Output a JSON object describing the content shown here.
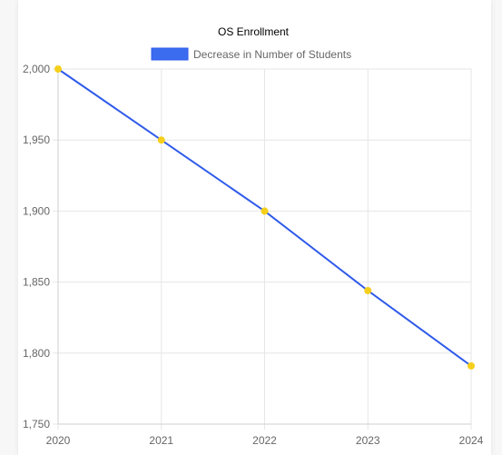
{
  "chart_data": {
    "type": "line",
    "title": "OS Enrollment",
    "categories": [
      "2020",
      "2021",
      "2022",
      "2023",
      "2024"
    ],
    "series": [
      {
        "name": "Decrease in Number of Students",
        "values": [
          2000,
          1950,
          1900,
          1844,
          1791
        ],
        "line_color": "#2f5bea",
        "point_color": "#f5cf1b",
        "legend_fill": "#3b6cf0"
      }
    ],
    "ylim": [
      1750,
      2000
    ],
    "y_ticks": [
      2000,
      1950,
      1900,
      1850,
      1800,
      1750
    ],
    "y_tick_labels": [
      "2,000",
      "1,950",
      "1,900",
      "1,850",
      "1,800",
      "1,750"
    ],
    "grid": true,
    "legend_position": "top"
  }
}
